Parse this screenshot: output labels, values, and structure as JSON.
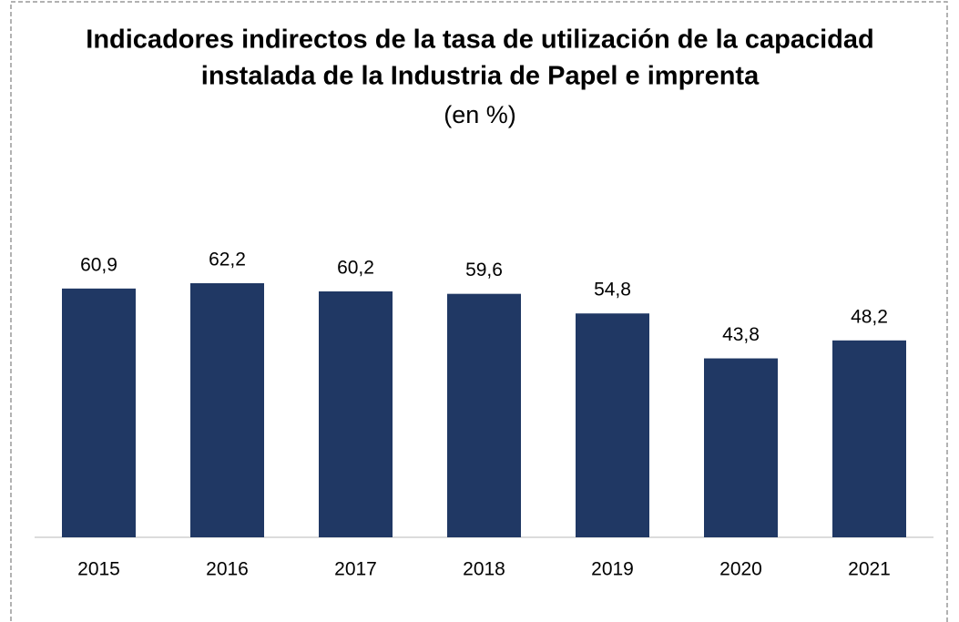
{
  "chart_data": {
    "type": "bar",
    "title": [
      "Indicadores indirectos de la tasa de utilización de la capacidad",
      "instalada de la Industria de Papel e imprenta"
    ],
    "subtitle": "(en %)",
    "categories": [
      "2015",
      "2016",
      "2017",
      "2018",
      "2019",
      "2020",
      "2021"
    ],
    "values": [
      60.9,
      62.2,
      60.2,
      59.6,
      54.8,
      43.8,
      48.2
    ],
    "value_labels": [
      "60,9",
      "62,2",
      "60,2",
      "59,6",
      "54,8",
      "43,8",
      "48,2"
    ],
    "color": "#203864"
  }
}
